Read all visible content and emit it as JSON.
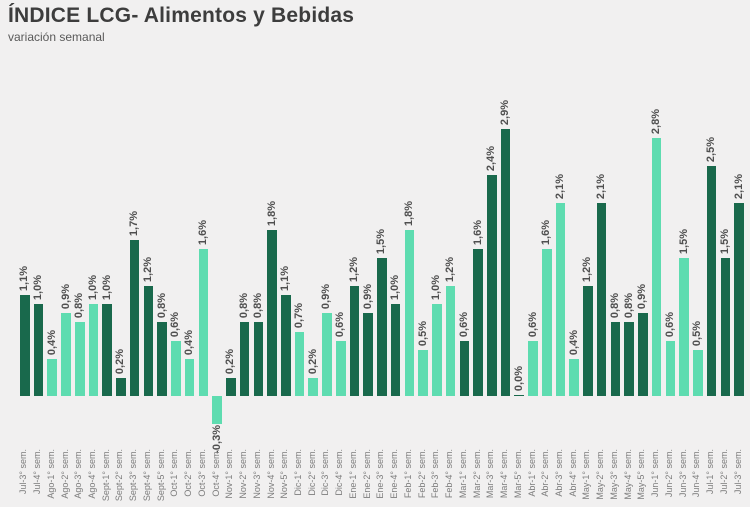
{
  "page": {
    "title": "ÍNDICE LCG- Alimentos y Bebidas",
    "subtitle": "variación semanal"
  },
  "colors": {
    "bar_dark": "#19694c",
    "bar_light": "#5edcb0",
    "background": "#f1f0f0",
    "title_text": "#3d3d3d",
    "subtitle_text": "#595959",
    "value_label_text": "#4f4f4f",
    "axis_label_text": "#7d7d7d"
  },
  "chart_data": {
    "type": "bar",
    "title": "ÍNDICE LCG- Alimentos y Bebidas",
    "subtitle": "variación semanal",
    "unit": "%",
    "decimal_separator": ",",
    "xlabel": "",
    "ylabel": "",
    "ylim": [
      -0.5,
      3.1
    ],
    "grid": false,
    "legend": "none",
    "bar_color_rule": "bars colored by month, alternating dark green and light green months",
    "categories": [
      "Jul-3° sem.",
      "Jul-4° sem.",
      "Ago-1° sem.",
      "Ago-2° sem.",
      "Ago-3° sem.",
      "Ago-4° sem.",
      "Sept-1° sem.",
      "Sept-2° sem.",
      "Sept-3° sem.",
      "Sept-4° sem.",
      "Sept-5° sem.",
      "Oct-1° sem.",
      "Oct-2° sem.",
      "Oct-3° sem.",
      "Oct-4° sem.",
      "Nov-1° sem.",
      "Nov-2° sem.",
      "Nov-3° sem.",
      "Nov-4° sem.",
      "Nov-5° sem.",
      "Dic-1° sem.",
      "Dic-2° sem.",
      "Dic-3° sem.",
      "Dic-4° sem.",
      "Ene-1° sem.",
      "Ene-2° sem.",
      "Ene-3° sem.",
      "Ene-4° sem.",
      "Feb-1° sem.",
      "Feb-2° sem.",
      "Feb-3° sem.",
      "Feb-4° sem.",
      "Mar-1° sem.",
      "Mar-2° sem.",
      "Mar-3° sem.",
      "Mar-4° sem.",
      "Mar-5° sem.",
      "Abr-1° sem.",
      "Abr-2° sem.",
      "Abr-3° sem.",
      "Abr-4° sem.",
      "May-1° sem.",
      "May-2° sem.",
      "May-3° sem.",
      "May-4° sem.",
      "May-5° sem.",
      "Jun-1° sem.",
      "Jun-2° sem.",
      "Jun-3° sem.",
      "Jun-4° sem.",
      "Jul-1° sem.",
      "Jul-2° sem.",
      "Jul-3° sem."
    ],
    "values": [
      1.1,
      1.0,
      0.4,
      0.9,
      0.8,
      1.0,
      1.0,
      0.2,
      1.7,
      1.2,
      0.8,
      0.6,
      0.4,
      1.6,
      -0.3,
      0.2,
      0.8,
      0.8,
      1.8,
      1.1,
      0.7,
      0.2,
      0.9,
      0.6,
      1.2,
      0.9,
      1.5,
      1.0,
      1.8,
      0.5,
      1.0,
      1.2,
      0.6,
      1.6,
      2.4,
      2.9,
      0.0,
      0.6,
      1.6,
      2.1,
      0.4,
      1.2,
      2.1,
      0.8,
      0.8,
      0.9,
      2.8,
      0.6,
      1.5,
      0.5,
      2.5,
      1.5,
      2.1
    ],
    "data_labels": [
      "1,1%",
      "1,0%",
      "0,4%",
      "0,9%",
      "0,8%",
      "1,0%",
      "1,0%",
      "0,2%",
      "1,7%",
      "1,2%",
      "0,8%",
      "0,6%",
      "0,4%",
      "1,6%",
      "-0,3%",
      "0,2%",
      "0,8%",
      "0,8%",
      "1,8%",
      "1,1%",
      "0,7%",
      "0,2%",
      "0,9%",
      "0,6%",
      "1,2%",
      "0,9%",
      "1,5%",
      "1,0%",
      "1,8%",
      "0,5%",
      "1,0%",
      "1,2%",
      "0,6%",
      "1,6%",
      "2,4%",
      "2,9%",
      "0,0%",
      "0,6%",
      "1,6%",
      "2,1%",
      "0,4%",
      "1,2%",
      "2,1%",
      "0,8%",
      "0,8%",
      "0,9%",
      "2,8%",
      "0,6%",
      "1,5%",
      "0,5%",
      "2,5%",
      "1,5%",
      "2,1%"
    ],
    "shades": [
      "dark",
      "dark",
      "light",
      "light",
      "light",
      "light",
      "dark",
      "dark",
      "dark",
      "dark",
      "dark",
      "light",
      "light",
      "light",
      "light",
      "dark",
      "dark",
      "dark",
      "dark",
      "dark",
      "light",
      "light",
      "light",
      "light",
      "dark",
      "dark",
      "dark",
      "dark",
      "light",
      "light",
      "light",
      "light",
      "dark",
      "dark",
      "dark",
      "dark",
      "dark",
      "light",
      "light",
      "light",
      "light",
      "dark",
      "dark",
      "dark",
      "dark",
      "dark",
      "light",
      "light",
      "light",
      "light",
      "dark",
      "dark",
      "dark"
    ]
  }
}
